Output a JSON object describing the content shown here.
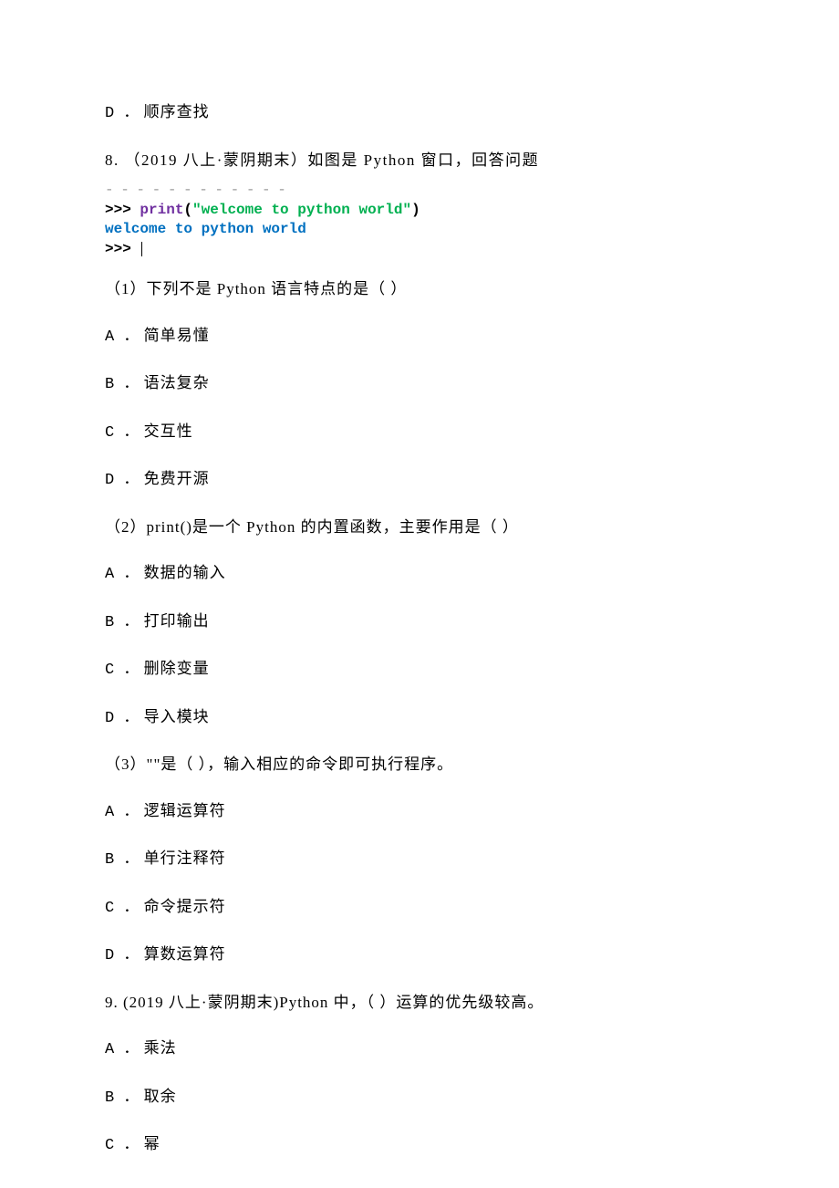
{
  "q7": {
    "optionD": {
      "label": "D ．",
      "text": "顺序查找"
    }
  },
  "q8": {
    "number": "8.",
    "source": "（2019 八上·蒙阴期末）",
    "stem": "如图是 Python 窗口，回答问题",
    "code": {
      "line1_prompt": ">>> ",
      "line1_print": "print",
      "line1_paren_open": "(",
      "line1_string": "\"welcome to python world\"",
      "line1_paren_close": ")",
      "line2_output": "welcome to python world",
      "line3_prompt": ">>> "
    },
    "sub1": {
      "stem": "（1）下列不是 Python 语言特点的是（ ）",
      "optionA": {
        "label": "A ．",
        "text": "简单易懂"
      },
      "optionB": {
        "label": "B ．",
        "text": "语法复杂"
      },
      "optionC": {
        "label": "C ．",
        "text": "交互性"
      },
      "optionD": {
        "label": "D ．",
        "text": "免费开源"
      }
    },
    "sub2": {
      "stem": "（2）print()是一个 Python 的内置函数，主要作用是（ ）",
      "optionA": {
        "label": "A ．",
        "text": "数据的输入"
      },
      "optionB": {
        "label": "B ．",
        "text": "打印输出"
      },
      "optionC": {
        "label": "C ．",
        "text": "删除变量"
      },
      "optionD": {
        "label": "D ．",
        "text": "导入模块"
      }
    },
    "sub3": {
      "stem": "（3）\"\"是（ ），输入相应的命令即可执行程序。",
      "optionA": {
        "label": "A ．",
        "text": "逻辑运算符"
      },
      "optionB": {
        "label": "B ．",
        "text": "单行注释符"
      },
      "optionC": {
        "label": "C ．",
        "text": "命令提示符"
      },
      "optionD": {
        "label": "D ．",
        "text": "算数运算符"
      }
    }
  },
  "q9": {
    "number": "9.",
    "source": "(2019 八上·蒙阴期末)",
    "stem": "Python 中，（ ）运算的优先级较高。",
    "optionA": {
      "label": "A ．",
      "text": "乘法"
    },
    "optionB": {
      "label": "B ．",
      "text": "取余"
    },
    "optionC": {
      "label": "C ．",
      "text": "幂"
    }
  }
}
